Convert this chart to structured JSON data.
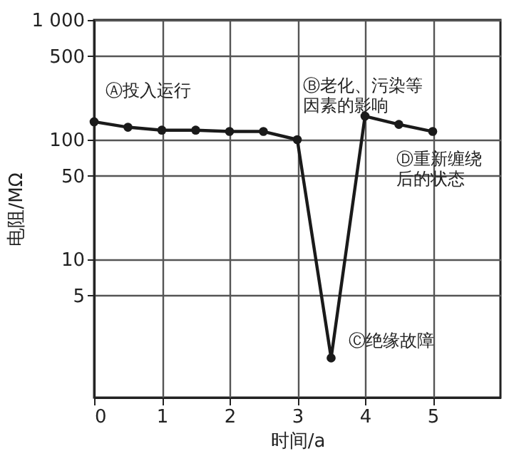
{
  "chart_data": {
    "type": "line",
    "xlabel": "时间/a",
    "ylabel": "电阻/MΩ",
    "x": [
      0,
      0.5,
      1,
      1.5,
      2,
      2.5,
      3,
      3.5,
      4,
      4.5,
      5
    ],
    "series": [
      {
        "color": "#1a1a1a",
        "values": [
          141,
          127,
          120,
          120,
          117,
          117,
          100,
          1.5,
          157,
          134,
          117
        ]
      }
    ],
    "log": true,
    "xlim": [
      0,
      6
    ],
    "xticks": [
      0,
      1,
      2,
      3,
      4,
      5
    ],
    "ylim": [
      0.7,
      1000
    ],
    "yticks": [
      5,
      10,
      50,
      100,
      500,
      {
        "value": 1000,
        "label": "1 000"
      }
    ],
    "grid": true,
    "marker": "circle",
    "line_style": "solid",
    "annotations": [
      {
        "text": "Ⓐ投入运行",
        "x": 0,
        "y": 141
      },
      {
        "text": "Ⓑ老化、污染等因素的影响",
        "x": 3,
        "y": 100
      },
      {
        "text": "Ⓒ绝缘故障",
        "x": 3.5,
        "y": 1.5
      },
      {
        "text": "Ⓓ重新缠绕后的状态",
        "x": 4,
        "y": 157
      }
    ]
  }
}
